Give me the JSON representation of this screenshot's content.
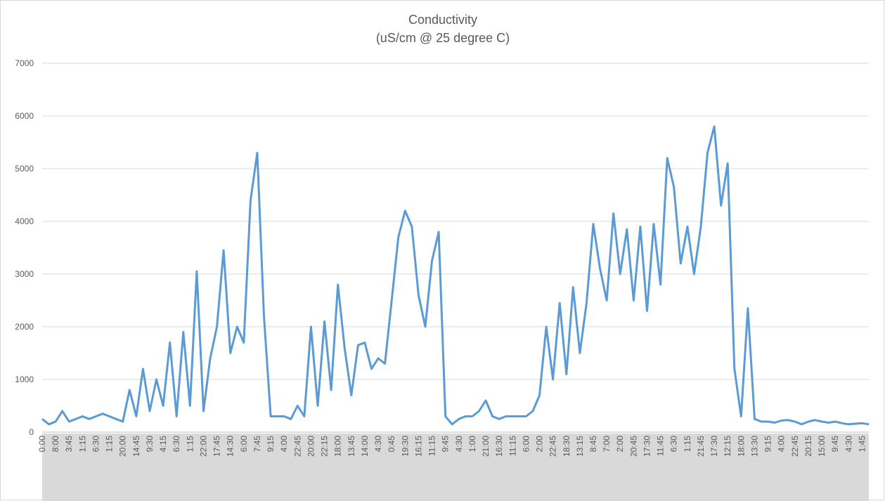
{
  "chart_data": {
    "type": "line",
    "title": "Conductivity",
    "subtitle": "(uS/cm @ 25 degree C)",
    "ylim": [
      0,
      7000
    ],
    "yticks": [
      0,
      1000,
      2000,
      3000,
      4000,
      5000,
      6000,
      7000
    ],
    "grid": true,
    "categories": [
      "0:00",
      null,
      "8:00",
      null,
      "3:45",
      null,
      "1:15",
      null,
      "6:30",
      null,
      "1:15",
      null,
      "20:00",
      null,
      "14:45",
      null,
      "9:30",
      null,
      "4:15",
      null,
      "6:30",
      null,
      "1:15",
      null,
      "22:00",
      null,
      "17:45",
      null,
      "14:30",
      null,
      "6:00",
      null,
      "7:45",
      null,
      "9:15",
      null,
      "4:00",
      null,
      "22:45",
      null,
      "20:00",
      null,
      "22:15",
      null,
      "18:00",
      null,
      "13:45",
      null,
      "14:00",
      null,
      "4:30",
      null,
      "0:45",
      null,
      "19:30",
      null,
      "16:15",
      null,
      "11:15",
      null,
      "9:45",
      null,
      "4:30",
      null,
      "1:00",
      null,
      "21:00",
      null,
      "16:30",
      null,
      "11:15",
      null,
      "6:00",
      null,
      "2:00",
      null,
      "22:45",
      null,
      "18:30",
      null,
      "13:15",
      null,
      "8:45",
      null,
      "7:00",
      null,
      "2:00",
      null,
      "20:45",
      null,
      "17:30",
      null,
      "11:45",
      null,
      "6:30",
      null,
      "1:15",
      null,
      "21:45",
      null,
      "17:30",
      null,
      "12:15",
      null,
      "18:00",
      null,
      "13:30",
      null,
      "9:15",
      null,
      "4:00",
      null,
      "22:45",
      null,
      "20:15",
      null,
      "15:00",
      null,
      "9:45",
      null,
      "4:30",
      null,
      "1:45",
      null
    ],
    "series": [
      {
        "name": "Conductivity",
        "color": "#5b9bd5",
        "values": [
          250,
          150,
          200,
          400,
          200,
          250,
          300,
          250,
          300,
          350,
          300,
          250,
          200,
          800,
          300,
          1200,
          400,
          1000,
          500,
          1700,
          300,
          1900,
          500,
          3050,
          400,
          1400,
          2000,
          3450,
          1500,
          2000,
          1700,
          4400,
          5300,
          2200,
          300,
          300,
          300,
          250,
          500,
          300,
          2000,
          500,
          2100,
          800,
          2800,
          1600,
          700,
          1650,
          1700,
          1200,
          1400,
          1300,
          2500,
          3700,
          4200,
          3900,
          2600,
          2000,
          3250,
          3800,
          300,
          150,
          250,
          300,
          300,
          400,
          600,
          300,
          250,
          300,
          300,
          300,
          300,
          400,
          700,
          2000,
          1000,
          2450,
          1100,
          2750,
          1500,
          2450,
          3950,
          3100,
          2500,
          4150,
          3000,
          3850,
          2500,
          3900,
          2300,
          3950,
          2800,
          5200,
          4650,
          3200,
          3900,
          3000,
          3900,
          5300,
          5800,
          4300,
          5100,
          1200,
          300,
          2350,
          250,
          200,
          200,
          180,
          220,
          230,
          200,
          150,
          200,
          230,
          200,
          180,
          200,
          170,
          150,
          160,
          170,
          150
        ]
      }
    ]
  }
}
